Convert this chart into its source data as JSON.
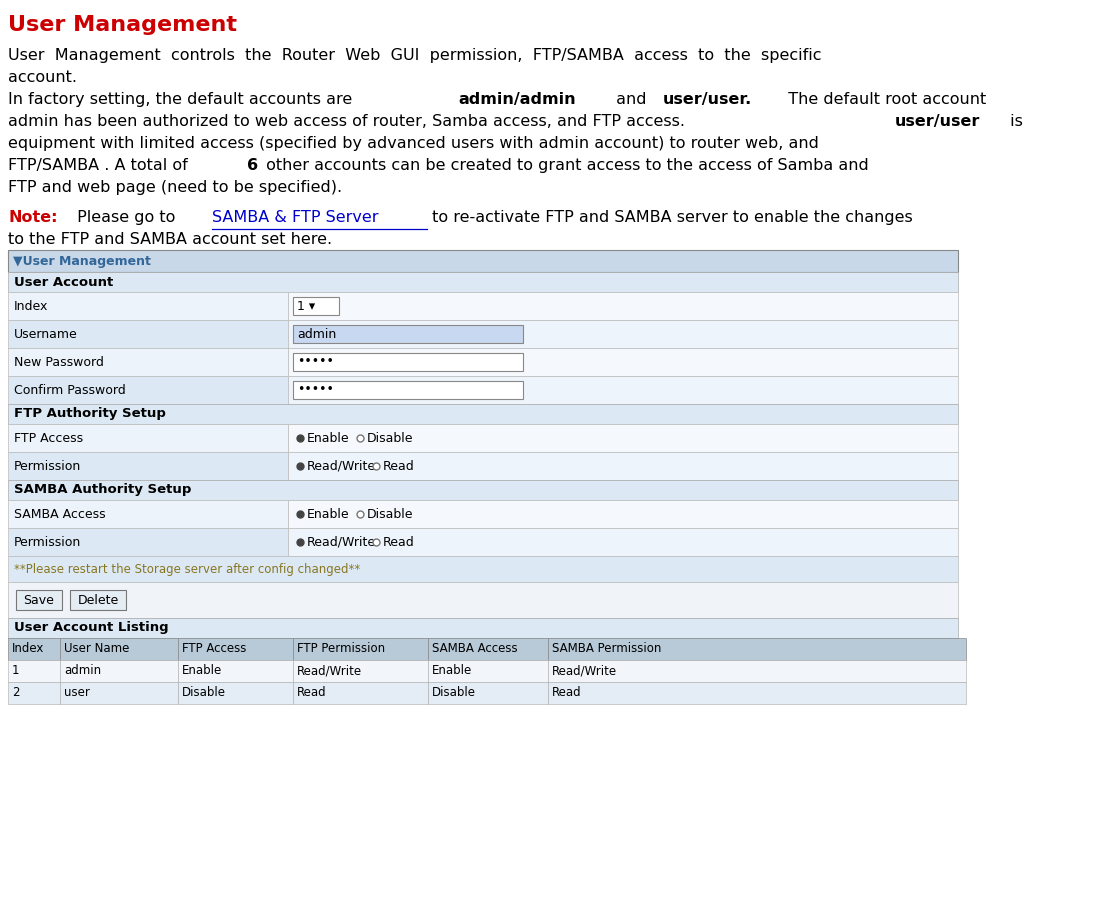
{
  "title": "User Management",
  "title_color": "#cc0000",
  "bg_color": "#ffffff",
  "note_label_color": "#cc0000",
  "note_link": "SAMBA & FTP Server",
  "note_link_color": "#0000cc",
  "panel_title": "User Management",
  "panel_title_color": "#336699",
  "section1_title": "User Account",
  "section2_title": "FTP Authority Setup",
  "section3_title": "SAMBA Authority Setup",
  "section4_title": "User Account Listing",
  "restart_note": "**Please restart the Storage server after config changed**",
  "listing_headers": [
    "Index",
    "User Name",
    "FTP Access",
    "FTP Permission",
    "SAMBA Access",
    "SAMBA Permission"
  ],
  "listing_rows": [
    [
      "1",
      "admin",
      "Enable",
      "Read/Write",
      "Enable",
      "Read/Write"
    ],
    [
      "2",
      "user",
      "Disable",
      "Read",
      "Disable",
      "Read"
    ]
  ]
}
